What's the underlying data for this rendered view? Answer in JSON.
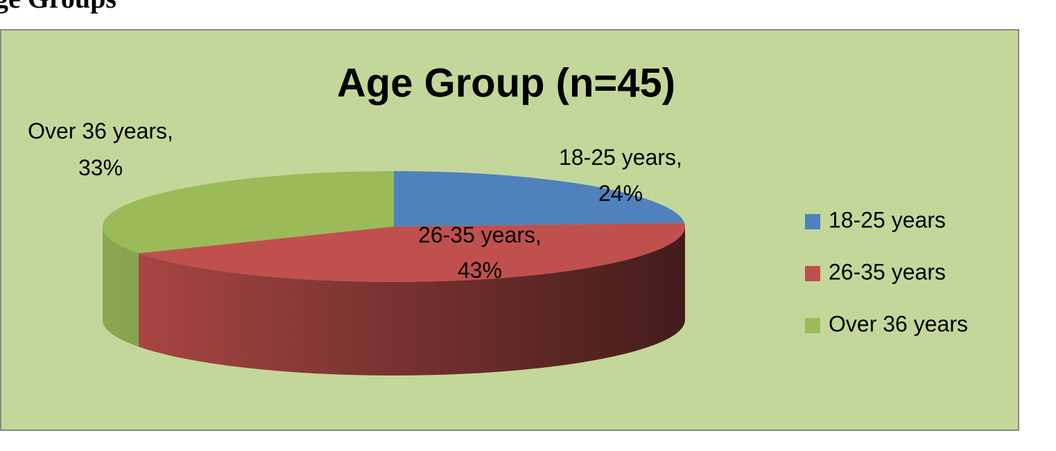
{
  "heading": "ge Groups",
  "chart_data": {
    "type": "pie",
    "title": "Age Group (n=45)",
    "categories": [
      "18-25 years",
      "26-35 years",
      "Over 36 years"
    ],
    "values": [
      24,
      43,
      33
    ],
    "value_labels": [
      "24%",
      "43%",
      "33%"
    ],
    "colors": [
      "#4f81bd",
      "#c0504d",
      "#9bbb59"
    ],
    "legend": "right"
  }
}
